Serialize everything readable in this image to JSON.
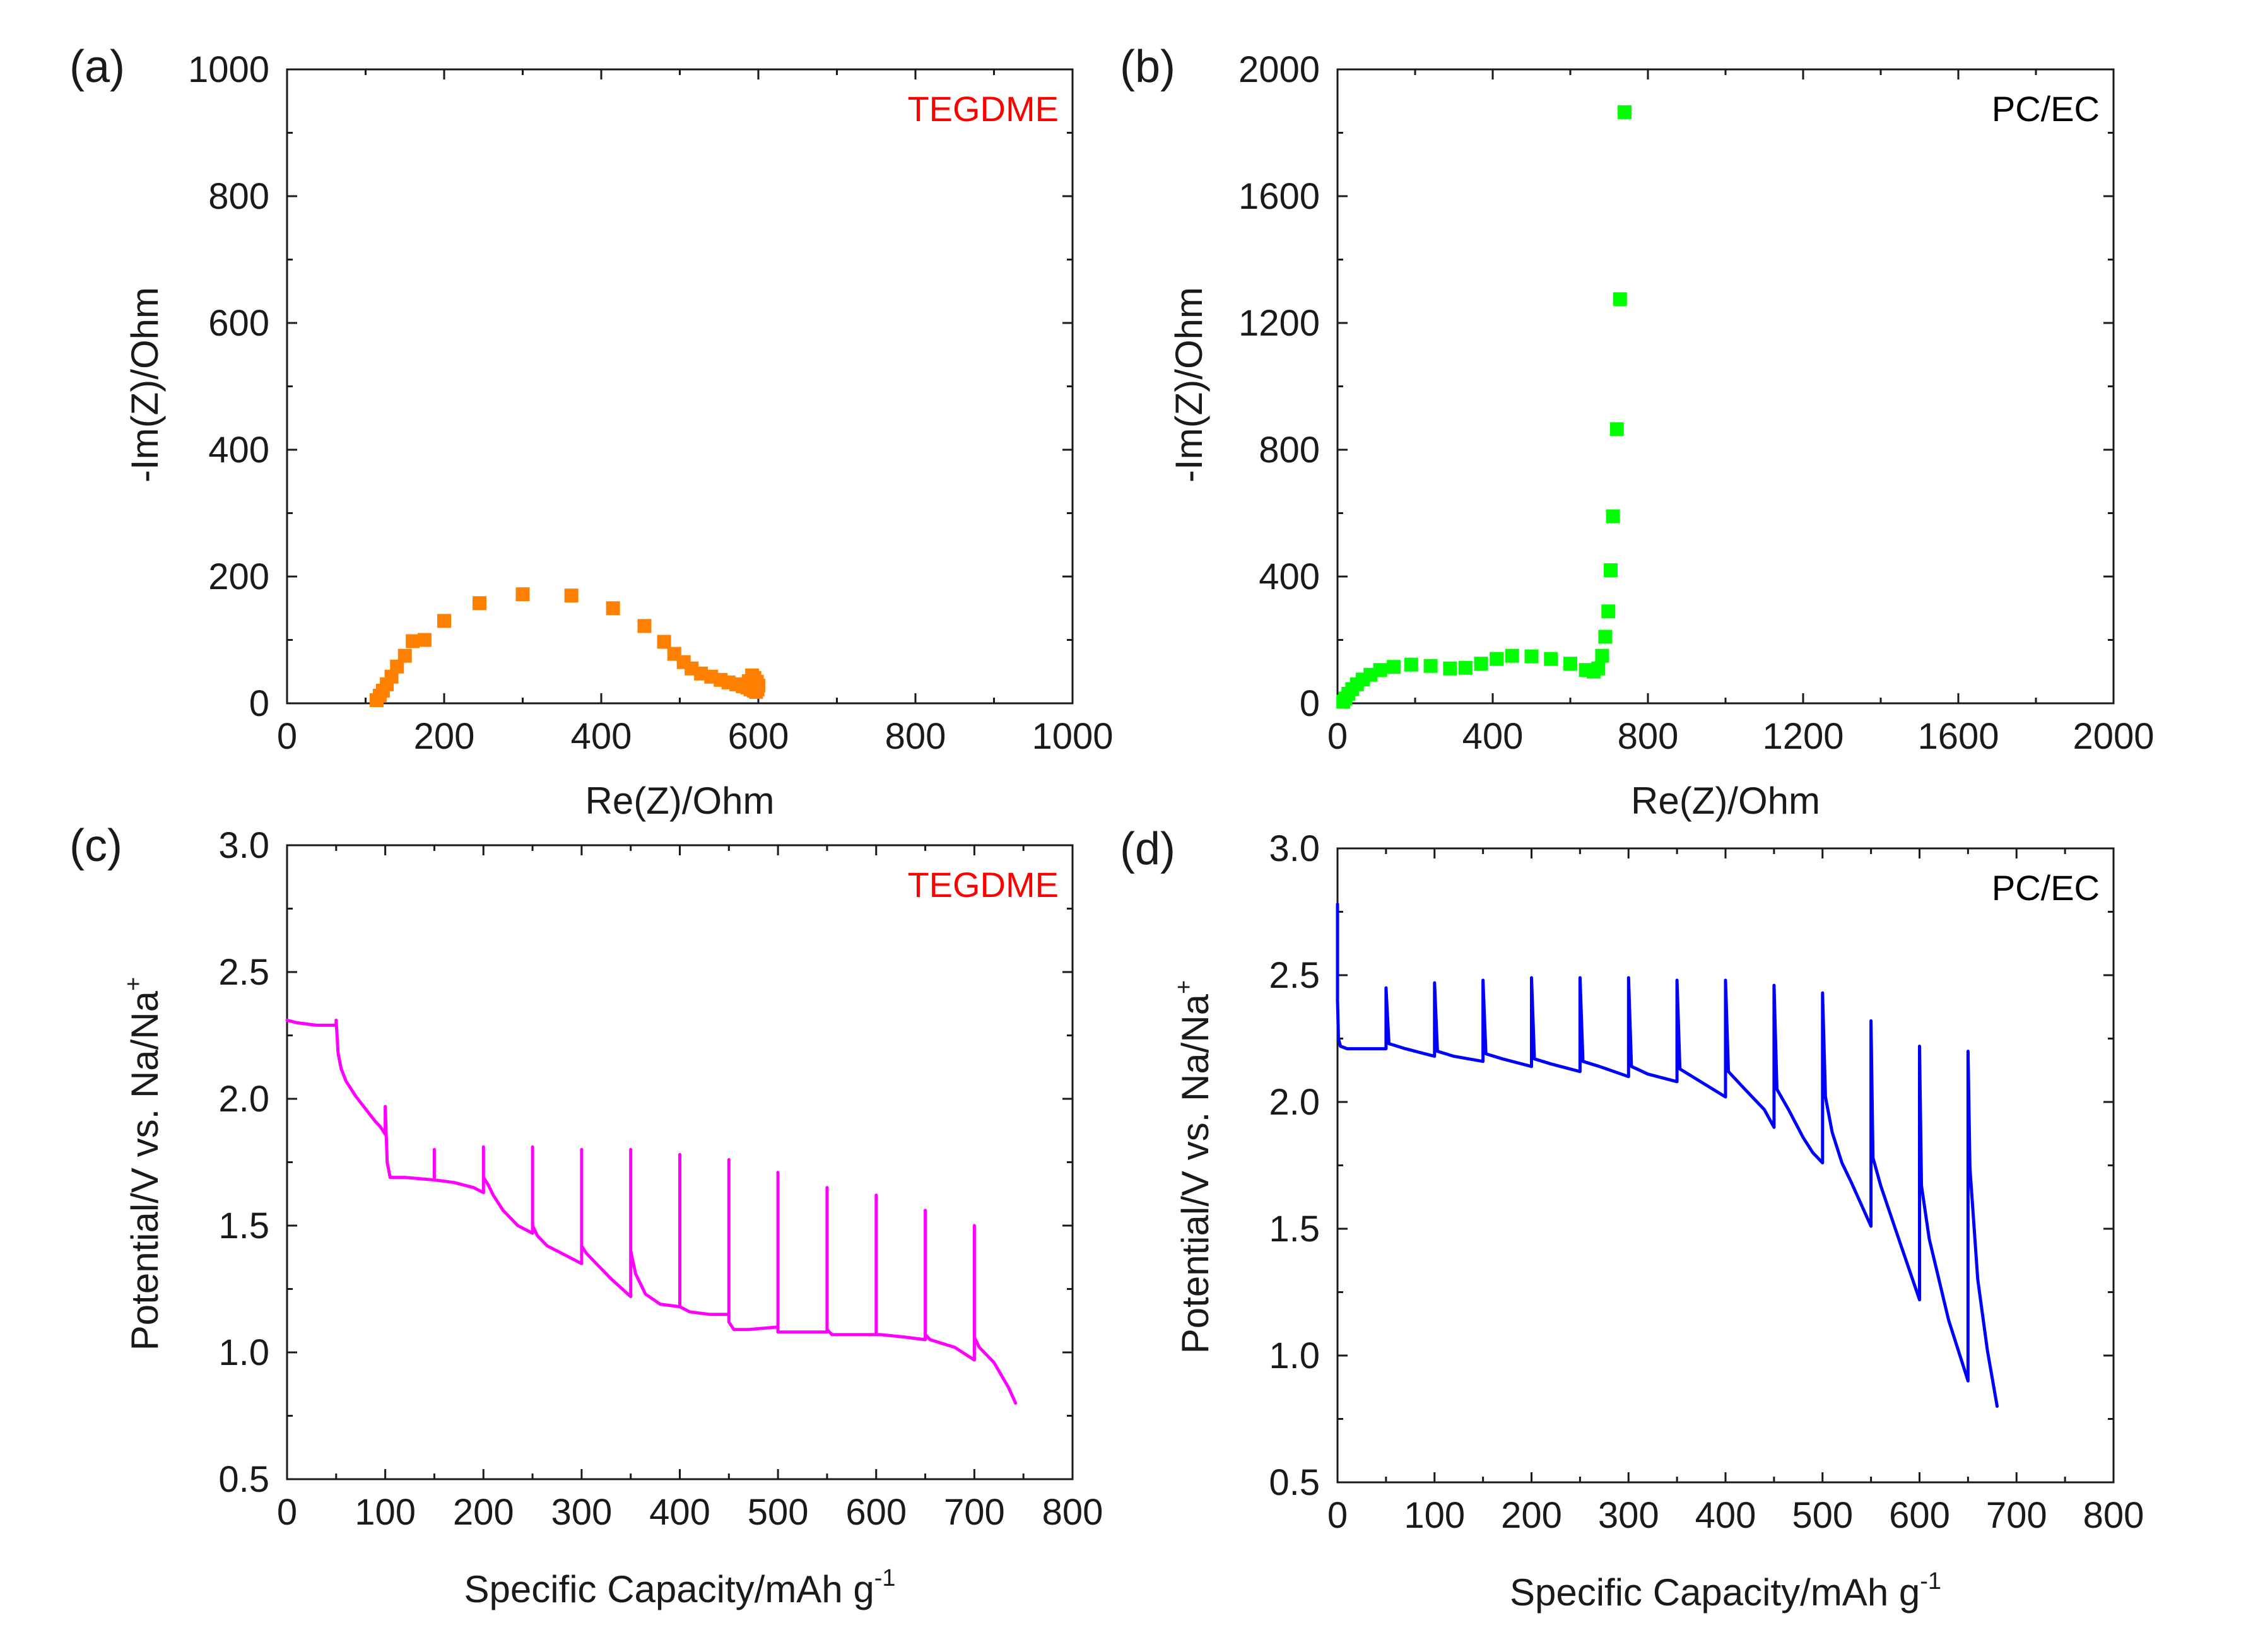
{
  "chart_data": [
    {
      "panel": "(a)",
      "type": "scatter",
      "annotation": "TEGDME",
      "annotation_color": "#ff0000",
      "series_color": "#ff8000",
      "xlabel": "Re(Z)/Ohm",
      "ylabel": "-Im(Z)/Ohm",
      "xlim": [
        0,
        1000
      ],
      "ylim": [
        0,
        1000
      ],
      "xticks": [
        "0",
        "200",
        "400",
        "600",
        "800",
        "1000"
      ],
      "yticks": [
        "0",
        "200",
        "400",
        "600",
        "800",
        "1000"
      ],
      "x": [
        114,
        118,
        122,
        127,
        133,
        140,
        150,
        160,
        175,
        200,
        245,
        300,
        362,
        415,
        455,
        480,
        493,
        505,
        515,
        527,
        540,
        552,
        562,
        572,
        580,
        586,
        590,
        594,
        597,
        599,
        600,
        598,
        595,
        592,
        588
      ],
      "y": [
        5,
        12,
        20,
        30,
        42,
        58,
        75,
        98,
        100,
        130,
        158,
        172,
        170,
        150,
        122,
        97,
        78,
        65,
        55,
        47,
        42,
        37,
        33,
        30,
        27,
        25,
        22,
        20,
        18,
        22,
        28,
        34,
        40,
        44,
        35
      ]
    },
    {
      "panel": "(b)",
      "type": "scatter",
      "annotation": "PC/EC",
      "annotation_color": "#000000",
      "series_color": "#00ff00",
      "xlabel": "Re(Z)/Ohm",
      "ylabel": "-Im(Z)/Ohm",
      "xlim": [
        0,
        2000
      ],
      "ylim": [
        0,
        2000
      ],
      "xticks": [
        "0",
        "400",
        "800",
        "1200",
        "1600",
        "2000"
      ],
      "yticks": [
        "0",
        "400",
        "800",
        "1200",
        "1600",
        "2000"
      ],
      "x": [
        15,
        20,
        28,
        38,
        50,
        65,
        85,
        110,
        145,
        190,
        240,
        290,
        330,
        370,
        410,
        450,
        500,
        550,
        600,
        640,
        660,
        672,
        682,
        690,
        698,
        704,
        710,
        720,
        728,
        740
      ],
      "y": [
        5,
        15,
        30,
        45,
        60,
        75,
        90,
        105,
        115,
        122,
        118,
        110,
        112,
        125,
        140,
        150,
        148,
        140,
        125,
        105,
        100,
        110,
        150,
        210,
        290,
        420,
        590,
        865,
        1275,
        1865
      ]
    },
    {
      "panel": "(c)",
      "type": "line",
      "annotation": "TEGDME",
      "annotation_color": "#ff0000",
      "series_color": "#ff00ff",
      "xlabel": "Specific Capacity/mAh g",
      "xlabel_sup": "-1",
      "ylabel": "Potential/V vs. Na/Na",
      "ylabel_sup": "+",
      "xlim": [
        0,
        800
      ],
      "ylim": [
        0.5,
        3.0
      ],
      "xticks": [
        "0",
        "100",
        "200",
        "300",
        "400",
        "500",
        "600",
        "700",
        "800"
      ],
      "yticks": [
        "0.5",
        "1.0",
        "1.5",
        "2.0",
        "2.5",
        "3.0"
      ],
      "x": [
        0,
        10,
        30,
        50,
        50,
        52,
        55,
        60,
        70,
        80,
        90,
        95,
        100,
        100,
        102,
        105,
        120,
        150,
        150,
        150,
        170,
        190,
        200,
        200,
        200,
        205,
        210,
        220,
        235,
        250,
        250,
        250,
        255,
        265,
        280,
        300,
        300,
        300,
        305,
        315,
        330,
        350,
        350,
        350,
        355,
        365,
        380,
        400,
        400,
        400,
        410,
        430,
        450,
        450,
        450,
        455,
        470,
        500,
        500,
        500,
        505,
        520,
        550,
        550,
        550,
        555,
        580,
        600,
        600,
        600,
        605,
        630,
        650,
        650,
        650,
        655,
        680,
        700,
        700,
        700,
        705,
        720,
        735,
        742
      ],
      "y": [
        2.31,
        2.3,
        2.29,
        2.29,
        2.31,
        2.18,
        2.12,
        2.07,
        2.01,
        1.96,
        1.91,
        1.89,
        1.86,
        1.97,
        1.75,
        1.69,
        1.69,
        1.68,
        1.8,
        1.68,
        1.67,
        1.65,
        1.63,
        1.81,
        1.69,
        1.66,
        1.62,
        1.56,
        1.5,
        1.47,
        1.81,
        1.5,
        1.46,
        1.42,
        1.39,
        1.35,
        1.8,
        1.42,
        1.39,
        1.35,
        1.29,
        1.22,
        1.8,
        1.4,
        1.31,
        1.23,
        1.19,
        1.18,
        1.78,
        1.18,
        1.16,
        1.15,
        1.15,
        1.76,
        1.12,
        1.09,
        1.09,
        1.1,
        1.71,
        1.08,
        1.08,
        1.08,
        1.08,
        1.65,
        1.09,
        1.07,
        1.07,
        1.07,
        1.62,
        1.07,
        1.07,
        1.06,
        1.05,
        1.56,
        1.07,
        1.05,
        1.02,
        0.97,
        1.5,
        1.06,
        1.02,
        0.96,
        0.86,
        0.8
      ]
    },
    {
      "panel": "(d)",
      "type": "line",
      "annotation": "PC/EC",
      "annotation_color": "#000000",
      "series_color": "#0000ff",
      "xlabel": "Specific Capacity/mAh g",
      "xlabel_sup": "-1",
      "ylabel": "Potential/V vs. Na/Na",
      "ylabel_sup": "+",
      "xlim": [
        0,
        800
      ],
      "ylim": [
        0.5,
        3.0
      ],
      "xticks": [
        "0",
        "100",
        "200",
        "300",
        "400",
        "500",
        "600",
        "700",
        "800"
      ],
      "yticks": [
        "0.5",
        "1.0",
        "1.5",
        "2.0",
        "2.5",
        "3.0"
      ],
      "x": [
        0,
        0,
        1,
        3,
        10,
        30,
        50,
        50,
        53,
        70,
        100,
        100,
        103,
        120,
        150,
        150,
        153,
        170,
        200,
        200,
        203,
        220,
        250,
        250,
        253,
        270,
        300,
        300,
        303,
        320,
        350,
        350,
        353,
        370,
        400,
        400,
        403,
        420,
        440,
        450,
        450,
        453,
        465,
        480,
        490,
        500,
        500,
        503,
        510,
        520,
        530,
        550,
        550,
        552,
        560,
        575,
        600,
        600,
        602,
        610,
        630,
        650,
        650,
        652,
        660,
        670,
        680
      ],
      "y": [
        2.78,
        2.4,
        2.25,
        2.22,
        2.21,
        2.21,
        2.21,
        2.45,
        2.23,
        2.21,
        2.18,
        2.47,
        2.2,
        2.18,
        2.16,
        2.48,
        2.19,
        2.17,
        2.14,
        2.49,
        2.17,
        2.15,
        2.12,
        2.49,
        2.16,
        2.14,
        2.1,
        2.49,
        2.14,
        2.11,
        2.08,
        2.48,
        2.13,
        2.09,
        2.02,
        2.48,
        2.12,
        2.05,
        1.97,
        1.9,
        2.46,
        2.05,
        1.97,
        1.86,
        1.8,
        1.76,
        2.43,
        2.02,
        1.88,
        1.76,
        1.68,
        1.51,
        2.32,
        1.78,
        1.67,
        1.5,
        1.22,
        2.22,
        1.67,
        1.46,
        1.14,
        0.9,
        2.2,
        1.74,
        1.3,
        1.02,
        0.8
      ]
    }
  ]
}
